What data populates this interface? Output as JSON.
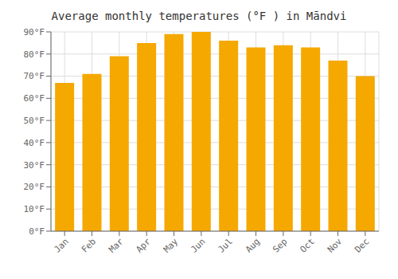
{
  "chart_data": {
    "type": "bar",
    "title": "Average monthly temperatures (°F ) in Māndvi",
    "categories": [
      "Jan",
      "Feb",
      "Mar",
      "Apr",
      "May",
      "Jun",
      "Jul",
      "Aug",
      "Sep",
      "Oct",
      "Nov",
      "Dec"
    ],
    "values": [
      67,
      71,
      79,
      85,
      89,
      90,
      86,
      83,
      84,
      83,
      77,
      70
    ],
    "color": "#F5A800",
    "ylim": [
      0,
      90
    ],
    "yticks": [
      {
        "value": 0,
        "label": "0°F"
      },
      {
        "value": 10,
        "label": "10°F"
      },
      {
        "value": 20,
        "label": "20°F"
      },
      {
        "value": 30,
        "label": "30°F"
      },
      {
        "value": 40,
        "label": "40°F"
      },
      {
        "value": 50,
        "label": "50°F"
      },
      {
        "value": 60,
        "label": "60°F"
      },
      {
        "value": 70,
        "label": "70°F"
      },
      {
        "value": 80,
        "label": "80°F"
      },
      {
        "value": 90,
        "label": "90°F"
      }
    ],
    "grid": true
  }
}
